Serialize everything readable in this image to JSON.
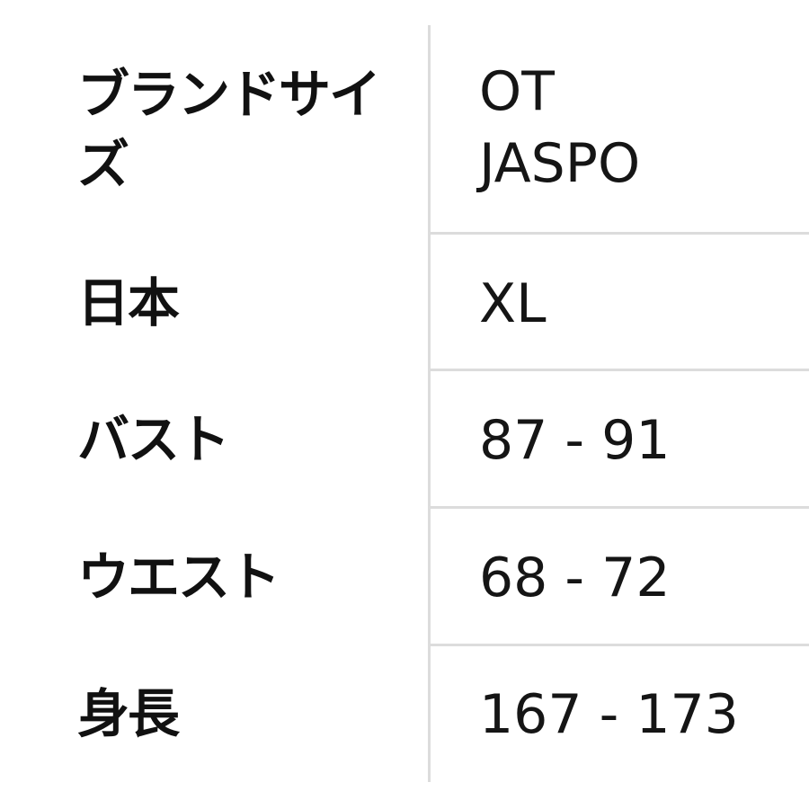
{
  "rows": [
    {
      "label": "ブランドサイズ",
      "value": "OT\nJASPO",
      "value_lines": [
        "OT",
        "JASPO"
      ]
    },
    {
      "label": "日本",
      "value": "XL"
    },
    {
      "label": "バスト",
      "value": "87 - 91"
    },
    {
      "label": "ウエスト",
      "value": "68 - 72"
    },
    {
      "label": "身長",
      "value": "167 - 173"
    }
  ]
}
